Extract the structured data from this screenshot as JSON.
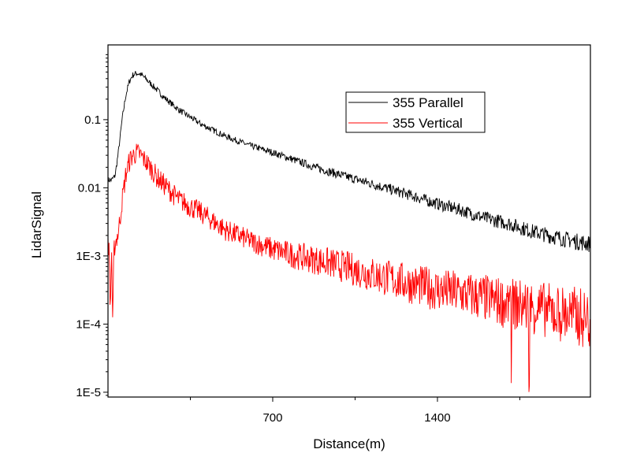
{
  "chart_data": {
    "type": "line",
    "title": "",
    "xlabel": "Distance(m)",
    "ylabel": "LidarSignal",
    "xscale": "linear",
    "yscale": "log",
    "xlim": [
      0,
      2050
    ],
    "ylim": [
      8.5e-06,
      1.25
    ],
    "grid": false,
    "legend_position": "top-center",
    "x_ticks": [
      700,
      1400
    ],
    "x_minor_ticks": [
      350,
      1050,
      1750
    ],
    "y_ticks": [
      0.1,
      0.01,
      0.001,
      0.0001,
      1e-05
    ],
    "y_tick_labels": [
      "0.1",
      "0.01",
      "1E-3",
      "1E-4",
      "1E-5"
    ],
    "series": [
      {
        "name": "355 Parallel",
        "color": "#000000",
        "x": [
          0,
          15,
          30,
          45,
          60,
          75,
          90,
          105,
          120,
          135,
          150,
          180,
          210,
          240,
          300,
          400,
          500,
          600,
          700,
          800,
          900,
          1000,
          1100,
          1200,
          1300,
          1400,
          1500,
          1600,
          1700,
          1800,
          1900,
          2000,
          2050
        ],
        "y": [
          0.013,
          0.013,
          0.015,
          0.035,
          0.1,
          0.22,
          0.36,
          0.45,
          0.48,
          0.47,
          0.43,
          0.34,
          0.27,
          0.21,
          0.14,
          0.084,
          0.057,
          0.042,
          0.033,
          0.025,
          0.019,
          0.015,
          0.012,
          0.0095,
          0.0075,
          0.0058,
          0.0047,
          0.0036,
          0.003,
          0.0023,
          0.0019,
          0.0016,
          0.0015
        ]
      },
      {
        "name": "355 Vertical",
        "color": "#ff0000",
        "x": [
          0,
          5,
          10,
          15,
          20,
          25,
          30,
          45,
          60,
          75,
          90,
          105,
          120,
          135,
          150,
          180,
          210,
          240,
          300,
          400,
          500,
          600,
          700,
          800,
          900,
          1000,
          1100,
          1200,
          1300,
          1400,
          1500,
          1600,
          1700,
          1800,
          1900,
          2000,
          2050
        ],
        "y": [
          0.0018,
          0.0011,
          0.00014,
          0.0014,
          8e-05,
          0.0012,
          0.0015,
          0.0023,
          0.0065,
          0.015,
          0.024,
          0.03,
          0.032,
          0.031,
          0.027,
          0.02,
          0.014,
          0.011,
          0.0067,
          0.0042,
          0.0024,
          0.0017,
          0.00125,
          0.001,
          0.00085,
          0.0007,
          0.00056,
          0.00046,
          0.00038,
          0.00032,
          0.00028,
          0.00024,
          0.0002,
          0.00018,
          0.00015,
          0.00013,
          0.00011
        ]
      }
    ]
  }
}
